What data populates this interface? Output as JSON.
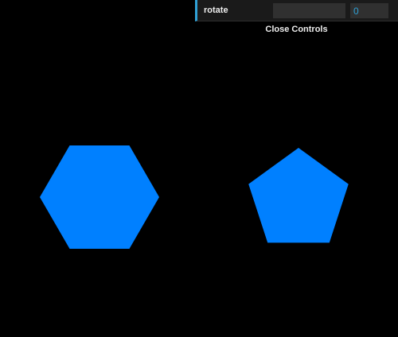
{
  "controls": {
    "rotate_label": "rotate",
    "rotate_value": 0,
    "rotate_display": "0",
    "close_label": "Close Controls",
    "accent_color": "#2fa1d6"
  },
  "scene": {
    "background_color": "#000000",
    "shape_color": "#0080ff",
    "shapes": [
      {
        "type": "hexagon",
        "sides": 6
      },
      {
        "type": "pentagon",
        "sides": 5
      }
    ]
  }
}
